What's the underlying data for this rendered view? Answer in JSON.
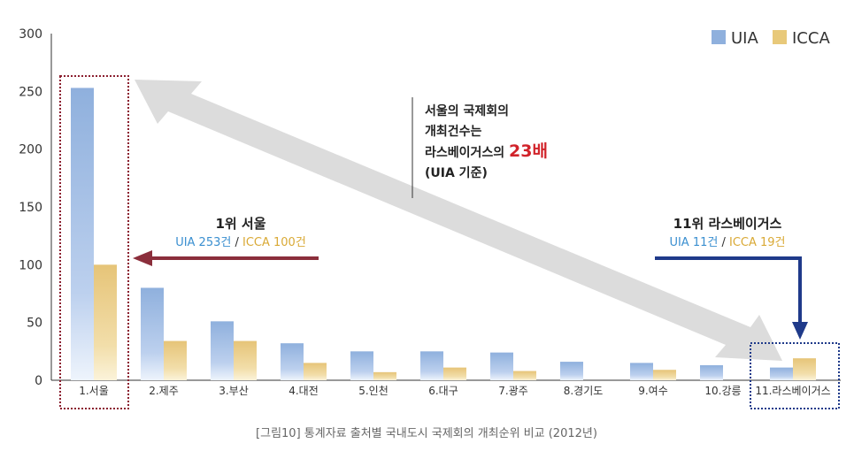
{
  "chart_data": {
    "type": "bar",
    "categories": [
      "1.서울",
      "2.제주",
      "3.부산",
      "4.대전",
      "5.인천",
      "6.대구",
      "7.광주",
      "8.경기도",
      "9.여수",
      "10.강릉",
      "11.라스베이거스"
    ],
    "series": [
      {
        "name": "UIA",
        "values": [
          253,
          80,
          51,
          32,
          25,
          25,
          24,
          16,
          15,
          13,
          11
        ],
        "color": "#8fb0dd"
      },
      {
        "name": "ICCA",
        "values": [
          100,
          34,
          34,
          15,
          7,
          11,
          8,
          0,
          9,
          0,
          19
        ],
        "color": "#e8c97a"
      }
    ],
    "yticks": [
      0,
      50,
      100,
      150,
      200,
      250,
      300
    ],
    "ylim": [
      0,
      300
    ],
    "grid": false,
    "legend_position": "top-right"
  },
  "annotations": {
    "seoul": {
      "title": "1위 서울",
      "uia": "UIA 253건",
      "sep": " / ",
      "icca": "ICCA 100건"
    },
    "lasvegas": {
      "title": "11위 라스베이거스",
      "uia": "UIA 11건",
      "sep": " / ",
      "icca": "ICCA 19건"
    },
    "note": {
      "line1": "서울의 국제회의",
      "line2": "개최건수는",
      "line3_prefix": "라스베이거스의 ",
      "line3_highlight": "23배",
      "line4": "(UIA 기준)"
    },
    "colors": {
      "uia_text": "#3a8fd0",
      "icca_text": "#d9a935",
      "seoul_arrow": "#8b2e3b",
      "lasvegas_arrow": "#1f3a8a",
      "highlight_box_red": "#8b2030",
      "highlight_box_blue": "#1f3a8a",
      "double_arrow": "#d9d9d9"
    }
  },
  "caption": "[그림10] 통계자료 출처별 국내도시 국제회의 개최순위 비교 (2012년)"
}
